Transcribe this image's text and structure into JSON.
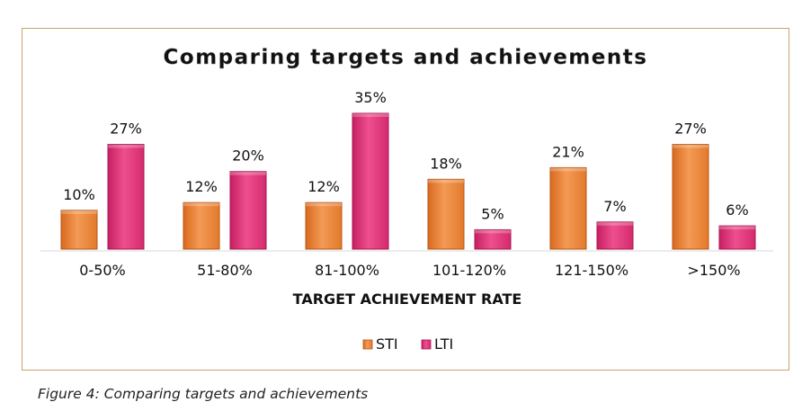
{
  "chart_data": {
    "type": "bar",
    "title": "Comparing targets and achievements",
    "xlabel": "TARGET ACHIEVEMENT RATE",
    "ylabel": "",
    "categories": [
      "0-50%",
      "51-80%",
      "81-100%",
      "101-120%",
      "121-150%",
      ">150%"
    ],
    "series": [
      {
        "name": "STI",
        "values": [
          10,
          12,
          12,
          18,
          21,
          27
        ],
        "labels": [
          "10%",
          "12%",
          "12%",
          "18%",
          "21%",
          "27%"
        ],
        "color": "#f08a3c"
      },
      {
        "name": "LTI",
        "values": [
          27,
          20,
          35,
          5,
          7,
          6
        ],
        "labels": [
          "27%",
          "20%",
          "35%",
          "5%",
          "7%",
          "6%"
        ],
        "color": "#e0357a"
      }
    ],
    "ylim": [
      0,
      35
    ],
    "grid": false,
    "legend": "bottom"
  },
  "caption": "Figure 4: Comparing targets and achievements"
}
